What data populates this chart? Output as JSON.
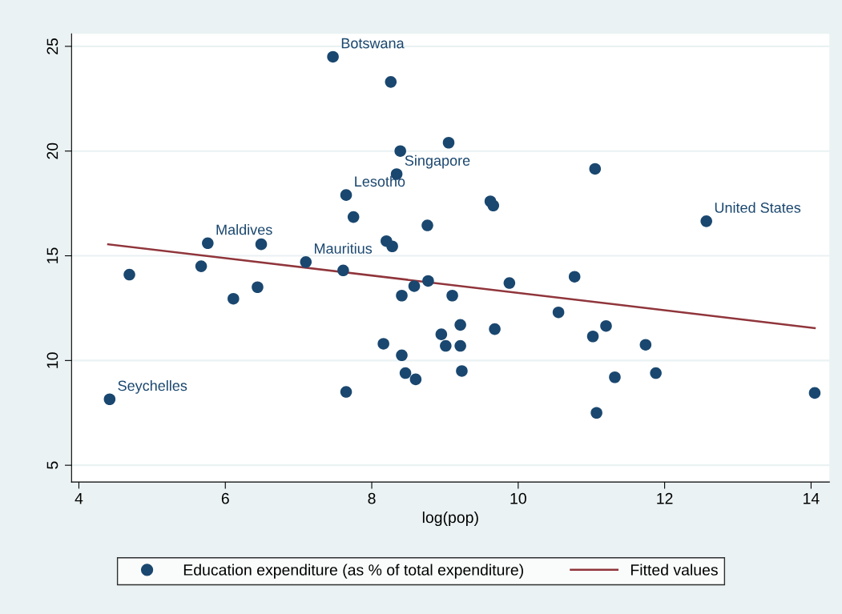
{
  "chart_data": {
    "type": "scatter",
    "xlabel": "log(pop)",
    "xlim": [
      3.9,
      14.25
    ],
    "ylim": [
      4.2,
      25.6
    ],
    "xticks": [
      4,
      6,
      8,
      10,
      12,
      14
    ],
    "yticks": [
      5,
      10,
      15,
      20,
      25
    ],
    "grid": "y",
    "legend": "bottom",
    "marker": "circle",
    "series": [
      {
        "name": "Education expenditure (as % of total expenditure)",
        "color": "#1a476f",
        "x": [
          7.47,
          8.26,
          8.39,
          9.05,
          8.34,
          11.05,
          7.65,
          9.62,
          9.66,
          12.57,
          7.75,
          8.76,
          5.76,
          6.49,
          8.2,
          8.28,
          7.1,
          4.69,
          5.67,
          7.61,
          6.11,
          6.44,
          8.77,
          8.58,
          8.41,
          9.88,
          9.1,
          10.77,
          10.55,
          9.21,
          9.68,
          11.2,
          8.95,
          11.02,
          8.16,
          9.01,
          9.21,
          11.74,
          8.41,
          8.46,
          8.6,
          9.23,
          11.88,
          11.32,
          7.65,
          4.42,
          11.07,
          14.05
        ],
        "values": [
          24.5,
          23.3,
          20.0,
          20.4,
          18.9,
          19.15,
          17.9,
          17.6,
          17.4,
          16.65,
          16.85,
          16.45,
          15.6,
          15.55,
          15.7,
          15.45,
          14.7,
          14.1,
          14.5,
          14.3,
          12.95,
          13.5,
          13.8,
          13.55,
          13.1,
          13.7,
          13.1,
          14.0,
          12.3,
          11.7,
          11.5,
          11.65,
          11.25,
          11.15,
          10.8,
          10.7,
          10.7,
          10.75,
          10.25,
          9.4,
          9.1,
          9.5,
          9.4,
          9.2,
          8.5,
          8.15,
          7.5,
          8.45
        ]
      },
      {
        "name": "Fitted values",
        "color": "#90353b",
        "type": "line",
        "marker": "none",
        "line_style": "solid",
        "x": [
          4.4,
          14.05
        ],
        "values": [
          15.55,
          11.55
        ]
      }
    ],
    "annotations": [
      {
        "text": "Botswana",
        "x": 7.47,
        "y": 24.5
      },
      {
        "text": "Singapore",
        "x": 8.34,
        "y": 18.9
      },
      {
        "text": "Lesotho",
        "x": 7.65,
        "y": 17.9
      },
      {
        "text": "United States",
        "x": 12.57,
        "y": 16.65
      },
      {
        "text": "Maldives",
        "x": 5.76,
        "y": 15.6
      },
      {
        "text": "Mauritius",
        "x": 7.1,
        "y": 14.7
      },
      {
        "text": "Seychelles",
        "x": 4.42,
        "y": 8.15
      }
    ]
  }
}
